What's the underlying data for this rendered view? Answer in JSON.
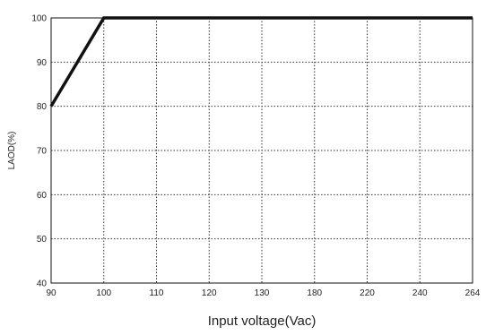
{
  "chart_data": {
    "type": "line",
    "title": "",
    "xlabel": "Input voltage(Vac)",
    "ylabel": "LAOD(%)",
    "x_categories": [
      "90",
      "100",
      "110",
      "120",
      "130",
      "180",
      "220",
      "240",
      "264"
    ],
    "y_ticks": [
      "40",
      "50",
      "60",
      "70",
      "80",
      "90",
      "100"
    ],
    "ylim": [
      40,
      100
    ],
    "grid": true,
    "grid_style": "dotted",
    "series": [
      {
        "x": [
          "90",
          "100",
          "264"
        ],
        "y": [
          80,
          100,
          100
        ],
        "color": "#111111"
      }
    ]
  }
}
